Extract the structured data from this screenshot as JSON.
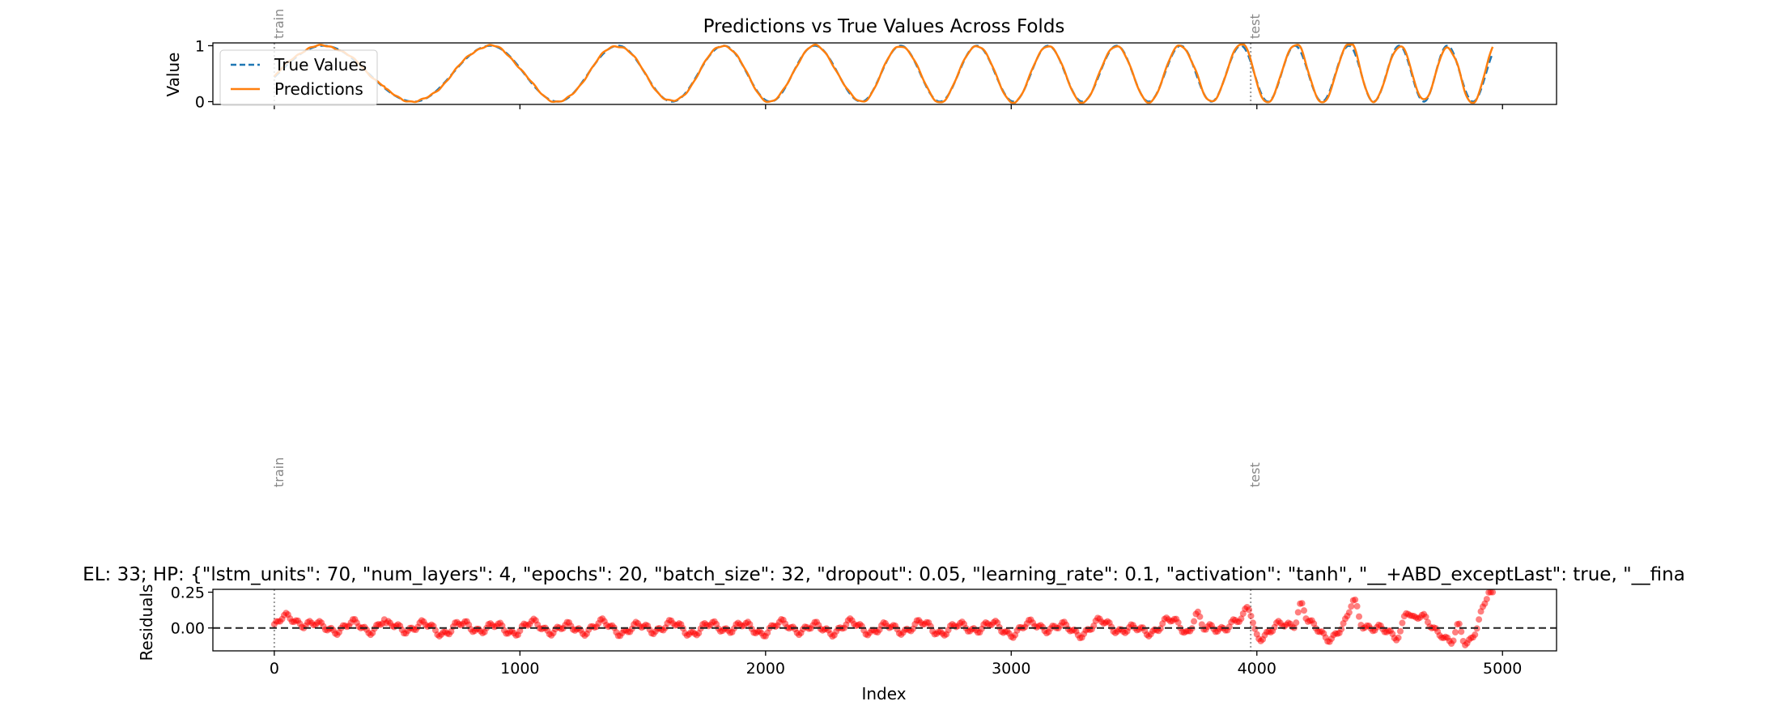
{
  "chart_data": [
    {
      "type": "line",
      "title": "Predictions vs True Values Across Folds",
      "xlabel": "",
      "ylabel": "Value",
      "xlim": [
        -250,
        5220
      ],
      "ylim": [
        -0.05,
        1.05
      ],
      "yticks": [
        0,
        1
      ],
      "ytick_labels": [
        "0",
        "1"
      ],
      "xticks": [
        0,
        1000,
        2000,
        3000,
        4000,
        5000
      ],
      "xtick_labels_visible": false,
      "grid": false,
      "legend_position": "top-left",
      "fold_markers": [
        {
          "x": 0,
          "label": "train"
        },
        {
          "x": 3975,
          "label": "test"
        }
      ],
      "x_domain": [
        0,
        4960
      ],
      "signal_description_points": {
        "peaks_x": [
          200,
          880,
          1400,
          1830,
          2200,
          2550,
          2860,
          3150,
          3430,
          3690,
          3935,
          4155,
          4375,
          4580,
          4775
        ],
        "troughs_x": [
          570,
          1155,
          1620,
          2020,
          2390,
          2710,
          3010,
          3290,
          3560,
          3815,
          4045,
          4265,
          4475,
          4680,
          4880
        ]
      },
      "series": [
        {
          "name": "True Values",
          "color": "#1f77b4",
          "style": "dashed"
        },
        {
          "name": "Predictions",
          "color": "#ff7f0e",
          "style": "solid"
        }
      ]
    },
    {
      "type": "scatter",
      "title": "EL: 33; HP: {\"lstm_units\": 70, \"num_layers\": 4, \"epochs\": 20, \"batch_size\": 32, \"dropout\": 0.05, \"learning_rate\": 0.1, \"activation\": \"tanh\", \"__+ABD_exceptLast\": true, \"__fina",
      "xlabel": "Index",
      "ylabel": "Residuals",
      "xlim": [
        -250,
        5220
      ],
      "ylim": [
        -0.16,
        0.27
      ],
      "xticks": [
        0,
        1000,
        2000,
        3000,
        4000,
        5000
      ],
      "xtick_labels": [
        "0",
        "1000",
        "2000",
        "3000",
        "4000",
        "5000"
      ],
      "yticks": [
        0.25,
        0.0
      ],
      "ytick_labels": [
        "0.25",
        "0.00"
      ],
      "zero_line": 0,
      "grid": false,
      "fold_markers": [
        {
          "x": 0,
          "label": "train"
        },
        {
          "x": 3975,
          "label": "test"
        }
      ],
      "series": [
        {
          "name": "",
          "color": "#ff0000"
        }
      ]
    }
  ],
  "colors": {
    "true_values": "#1f77b4",
    "predictions": "#ff7f0e",
    "residuals": "#ff0000",
    "fold_line": "#999999",
    "fold_text": "#888888"
  }
}
